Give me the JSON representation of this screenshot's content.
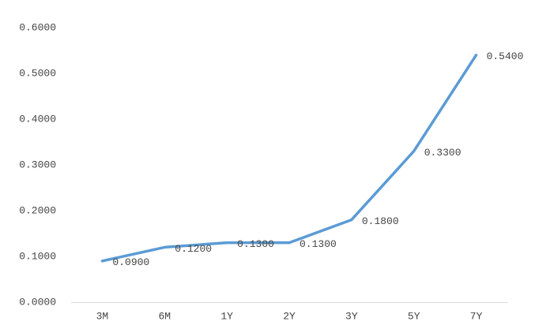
{
  "chart_data": {
    "type": "line",
    "categories": [
      "3M",
      "6M",
      "1Y",
      "2Y",
      "3Y",
      "5Y",
      "7Y"
    ],
    "values": [
      0.09,
      0.12,
      0.13,
      0.13,
      0.18,
      0.33,
      0.54
    ],
    "value_labels": [
      "0.0900",
      "0.1200",
      "0.1300",
      "0.1300",
      "0.1800",
      "0.3300",
      "0.5400"
    ],
    "color": "#5b9bd5",
    "ylim": [
      0,
      0.6
    ],
    "yticks": [
      {
        "value": 0,
        "label": "0.0000"
      },
      {
        "value": 0.1,
        "label": "0.1000"
      },
      {
        "value": 0.2,
        "label": "0.2000"
      },
      {
        "value": 0.3,
        "label": "0.3000"
      },
      {
        "value": 0.4,
        "label": "0.4000"
      },
      {
        "value": 0.5,
        "label": "0.5000"
      },
      {
        "value": 0.6,
        "label": "0.6000"
      }
    ],
    "grid": false
  }
}
